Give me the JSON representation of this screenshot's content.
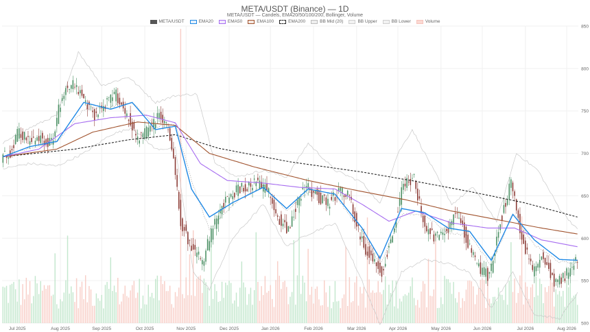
{
  "header": {
    "title": "META/USDT (Binance) — 1D",
    "subtitle": "META/USDT — Candels, EMA20/50/100/200, Bollinger, Volume"
  },
  "legend": [
    {
      "label": "META/USDT",
      "color": "#555555",
      "fill": "#555555",
      "dashed": false
    },
    {
      "label": "EMA20",
      "color": "#1e88e5",
      "fill": "#e3f0fc",
      "dashed": false
    },
    {
      "label": "EMA50",
      "color": "#a66cf0",
      "fill": "#f1e8fd",
      "dashed": false
    },
    {
      "label": "EMA100",
      "color": "#a0522d",
      "fill": "#f4e6df",
      "dashed": false
    },
    {
      "label": "EMA200",
      "color": "#222222",
      "fill": "#ffffff",
      "dashed": true
    },
    {
      "label": "BB Mid (20)",
      "color": "#bdbdbd",
      "fill": "#eeeeee",
      "dashed": false
    },
    {
      "label": "BB Upper",
      "color": "#cfcfcf",
      "fill": "#f2f2f2",
      "dashed": false
    },
    {
      "label": "BB Lower",
      "color": "#cfcfcf",
      "fill": "#f2f2f2",
      "dashed": false
    },
    {
      "label": "Volume",
      "color": "#f6c4bc",
      "fill": "#fbd9d3",
      "dashed": false
    }
  ],
  "colors": {
    "up": "#4a8f63",
    "down": "#8b3a34",
    "volume_up": "#b8e3c4",
    "volume_down": "#f7c5bd",
    "ema20": "#1e88e5",
    "ema50": "#a66cf0",
    "ema100": "#a0522d",
    "ema200": "#222222",
    "bb": "#c8c8c8",
    "grid": "#f0f0f0"
  },
  "chart_data": {
    "type": "candlestick",
    "title": "META/USDT (Binance) — 1D",
    "subtitle": "META/USDT — Candels, EMA20/50/100/200, Bollinger, Volume",
    "y_axis": {
      "side": "right",
      "ticks": [
        500,
        550,
        600,
        650,
        700,
        750,
        800,
        850
      ],
      "ylim": [
        500,
        850
      ]
    },
    "x_axis": {
      "labels": [
        "Jul 2025",
        "Aug 2025",
        "Sep 2025",
        "Oct 2025",
        "Nov 2025",
        "Dec 2025",
        "Jan 2026",
        "Feb 2026",
        "Mar 2026",
        "Apr 2026",
        "May 2026",
        "Jun 2026",
        "Jul 2026",
        "Aug 2026"
      ]
    },
    "grid": true,
    "legend_position": "top-center",
    "price_keypoints": [
      {
        "t": 0,
        "p": 695
      },
      {
        "t": 5,
        "p": 700
      },
      {
        "t": 10,
        "p": 728
      },
      {
        "t": 16,
        "p": 712
      },
      {
        "t": 22,
        "p": 718
      },
      {
        "t": 28,
        "p": 712
      },
      {
        "t": 34,
        "p": 770
      },
      {
        "t": 40,
        "p": 785
      },
      {
        "t": 46,
        "p": 760
      },
      {
        "t": 52,
        "p": 745
      },
      {
        "t": 58,
        "p": 758
      },
      {
        "t": 64,
        "p": 770
      },
      {
        "t": 70,
        "p": 745
      },
      {
        "t": 76,
        "p": 718
      },
      {
        "t": 82,
        "p": 728
      },
      {
        "t": 88,
        "p": 745
      },
      {
        "t": 92,
        "p": 735
      },
      {
        "t": 96,
        "p": 700
      },
      {
        "t": 100,
        "p": 620
      },
      {
        "t": 106,
        "p": 588
      },
      {
        "t": 112,
        "p": 572
      },
      {
        "t": 118,
        "p": 612
      },
      {
        "t": 124,
        "p": 640
      },
      {
        "t": 130,
        "p": 655
      },
      {
        "t": 136,
        "p": 660
      },
      {
        "t": 142,
        "p": 665
      },
      {
        "t": 148,
        "p": 658
      },
      {
        "t": 154,
        "p": 625
      },
      {
        "t": 160,
        "p": 610
      },
      {
        "t": 166,
        "p": 650
      },
      {
        "t": 170,
        "p": 660
      },
      {
        "t": 176,
        "p": 650
      },
      {
        "t": 182,
        "p": 640
      },
      {
        "t": 188,
        "p": 655
      },
      {
        "t": 194,
        "p": 648
      },
      {
        "t": 200,
        "p": 600
      },
      {
        "t": 206,
        "p": 575
      },
      {
        "t": 212,
        "p": 560
      },
      {
        "t": 218,
        "p": 605
      },
      {
        "t": 224,
        "p": 665
      },
      {
        "t": 230,
        "p": 670
      },
      {
        "t": 236,
        "p": 610
      },
      {
        "t": 242,
        "p": 600
      },
      {
        "t": 248,
        "p": 610
      },
      {
        "t": 254,
        "p": 630
      },
      {
        "t": 260,
        "p": 595
      },
      {
        "t": 266,
        "p": 565
      },
      {
        "t": 272,
        "p": 555
      },
      {
        "t": 278,
        "p": 620
      },
      {
        "t": 284,
        "p": 665
      },
      {
        "t": 290,
        "p": 600
      },
      {
        "t": 296,
        "p": 560
      },
      {
        "t": 302,
        "p": 580
      },
      {
        "t": 308,
        "p": 550
      },
      {
        "t": 314,
        "p": 555
      },
      {
        "t": 320,
        "p": 572
      }
    ],
    "ema20_keypoints": [
      {
        "t": 0,
        "p": 696
      },
      {
        "t": 15,
        "p": 708
      },
      {
        "t": 30,
        "p": 714
      },
      {
        "t": 45,
        "p": 760
      },
      {
        "t": 60,
        "p": 752
      },
      {
        "t": 72,
        "p": 760
      },
      {
        "t": 85,
        "p": 728
      },
      {
        "t": 96,
        "p": 732
      },
      {
        "t": 105,
        "p": 658
      },
      {
        "t": 115,
        "p": 625
      },
      {
        "t": 128,
        "p": 642
      },
      {
        "t": 145,
        "p": 660
      },
      {
        "t": 158,
        "p": 635
      },
      {
        "t": 170,
        "p": 658
      },
      {
        "t": 185,
        "p": 652
      },
      {
        "t": 200,
        "p": 612
      },
      {
        "t": 210,
        "p": 576
      },
      {
        "t": 222,
        "p": 635
      },
      {
        "t": 235,
        "p": 630
      },
      {
        "t": 248,
        "p": 612
      },
      {
        "t": 260,
        "p": 608
      },
      {
        "t": 272,
        "p": 574
      },
      {
        "t": 284,
        "p": 628
      },
      {
        "t": 296,
        "p": 598
      },
      {
        "t": 310,
        "p": 575
      },
      {
        "t": 320,
        "p": 574
      }
    ],
    "ema50_keypoints": [
      {
        "t": 0,
        "p": 696
      },
      {
        "t": 20,
        "p": 705
      },
      {
        "t": 40,
        "p": 735
      },
      {
        "t": 60,
        "p": 742
      },
      {
        "t": 80,
        "p": 745
      },
      {
        "t": 96,
        "p": 736
      },
      {
        "t": 110,
        "p": 688
      },
      {
        "t": 125,
        "p": 668
      },
      {
        "t": 145,
        "p": 665
      },
      {
        "t": 165,
        "p": 660
      },
      {
        "t": 185,
        "p": 658
      },
      {
        "t": 200,
        "p": 640
      },
      {
        "t": 215,
        "p": 620
      },
      {
        "t": 230,
        "p": 632
      },
      {
        "t": 250,
        "p": 618
      },
      {
        "t": 270,
        "p": 612
      },
      {
        "t": 285,
        "p": 612
      },
      {
        "t": 300,
        "p": 598
      },
      {
        "t": 320,
        "p": 590
      }
    ],
    "ema100_keypoints": [
      {
        "t": 0,
        "p": 696
      },
      {
        "t": 30,
        "p": 705
      },
      {
        "t": 50,
        "p": 725
      },
      {
        "t": 75,
        "p": 737
      },
      {
        "t": 96,
        "p": 733
      },
      {
        "t": 115,
        "p": 700
      },
      {
        "t": 140,
        "p": 684
      },
      {
        "t": 170,
        "p": 668
      },
      {
        "t": 200,
        "p": 655
      },
      {
        "t": 225,
        "p": 645
      },
      {
        "t": 250,
        "p": 632
      },
      {
        "t": 280,
        "p": 620
      },
      {
        "t": 300,
        "p": 612
      },
      {
        "t": 320,
        "p": 605
      }
    ],
    "ema200_keypoints": [
      {
        "t": 0,
        "p": 696
      },
      {
        "t": 40,
        "p": 705
      },
      {
        "t": 70,
        "p": 716
      },
      {
        "t": 96,
        "p": 722
      },
      {
        "t": 120,
        "p": 706
      },
      {
        "t": 160,
        "p": 690
      },
      {
        "t": 200,
        "p": 678
      },
      {
        "t": 230,
        "p": 667
      },
      {
        "t": 260,
        "p": 655
      },
      {
        "t": 290,
        "p": 642
      },
      {
        "t": 320,
        "p": 625
      }
    ],
    "bb_mid_keypoints": [
      {
        "t": 0,
        "p": 696
      },
      {
        "t": 15,
        "p": 706
      },
      {
        "t": 30,
        "p": 713
      },
      {
        "t": 45,
        "p": 752
      },
      {
        "t": 60,
        "p": 755
      },
      {
        "t": 72,
        "p": 760
      },
      {
        "t": 85,
        "p": 732
      },
      {
        "t": 96,
        "p": 735
      },
      {
        "t": 106,
        "p": 662
      },
      {
        "t": 115,
        "p": 610
      },
      {
        "t": 128,
        "p": 640
      },
      {
        "t": 145,
        "p": 662
      },
      {
        "t": 158,
        "p": 632
      },
      {
        "t": 170,
        "p": 655
      },
      {
        "t": 185,
        "p": 650
      },
      {
        "t": 200,
        "p": 608
      },
      {
        "t": 210,
        "p": 568
      },
      {
        "t": 222,
        "p": 628
      },
      {
        "t": 235,
        "p": 628
      },
      {
        "t": 248,
        "p": 606
      },
      {
        "t": 260,
        "p": 604
      },
      {
        "t": 272,
        "p": 568
      },
      {
        "t": 284,
        "p": 630
      },
      {
        "t": 296,
        "p": 592
      },
      {
        "t": 310,
        "p": 572
      },
      {
        "t": 320,
        "p": 570
      }
    ],
    "bb_upper_keypoints": [
      {
        "t": 0,
        "p": 712
      },
      {
        "t": 15,
        "p": 730
      },
      {
        "t": 30,
        "p": 745
      },
      {
        "t": 42,
        "p": 820
      },
      {
        "t": 55,
        "p": 780
      },
      {
        "t": 70,
        "p": 790
      },
      {
        "t": 85,
        "p": 760
      },
      {
        "t": 96,
        "p": 768
      },
      {
        "t": 108,
        "p": 770
      },
      {
        "t": 118,
        "p": 690
      },
      {
        "t": 130,
        "p": 672
      },
      {
        "t": 145,
        "p": 680
      },
      {
        "t": 158,
        "p": 672
      },
      {
        "t": 170,
        "p": 712
      },
      {
        "t": 185,
        "p": 680
      },
      {
        "t": 200,
        "p": 666
      },
      {
        "t": 210,
        "p": 640
      },
      {
        "t": 220,
        "p": 700
      },
      {
        "t": 228,
        "p": 728
      },
      {
        "t": 240,
        "p": 680
      },
      {
        "t": 250,
        "p": 640
      },
      {
        "t": 262,
        "p": 660
      },
      {
        "t": 275,
        "p": 620
      },
      {
        "t": 286,
        "p": 700
      },
      {
        "t": 298,
        "p": 680
      },
      {
        "t": 310,
        "p": 635
      },
      {
        "t": 320,
        "p": 610
      }
    ],
    "bb_lower_keypoints": [
      {
        "t": 0,
        "p": 682
      },
      {
        "t": 15,
        "p": 688
      },
      {
        "t": 30,
        "p": 685
      },
      {
        "t": 45,
        "p": 700
      },
      {
        "t": 60,
        "p": 722
      },
      {
        "t": 72,
        "p": 730
      },
      {
        "t": 85,
        "p": 705
      },
      {
        "t": 96,
        "p": 706
      },
      {
        "t": 106,
        "p": 560
      },
      {
        "t": 115,
        "p": 540
      },
      {
        "t": 128,
        "p": 600
      },
      {
        "t": 145,
        "p": 640
      },
      {
        "t": 158,
        "p": 590
      },
      {
        "t": 170,
        "p": 605
      },
      {
        "t": 185,
        "p": 618
      },
      {
        "t": 200,
        "p": 550
      },
      {
        "t": 210,
        "p": 498
      },
      {
        "t": 222,
        "p": 560
      },
      {
        "t": 235,
        "p": 575
      },
      {
        "t": 248,
        "p": 570
      },
      {
        "t": 260,
        "p": 560
      },
      {
        "t": 272,
        "p": 518
      },
      {
        "t": 284,
        "p": 560
      },
      {
        "t": 296,
        "p": 510
      },
      {
        "t": 310,
        "p": 505
      },
      {
        "t": 320,
        "p": 535
      }
    ],
    "num_candles": 321,
    "volume_scale_max": 1.0
  }
}
